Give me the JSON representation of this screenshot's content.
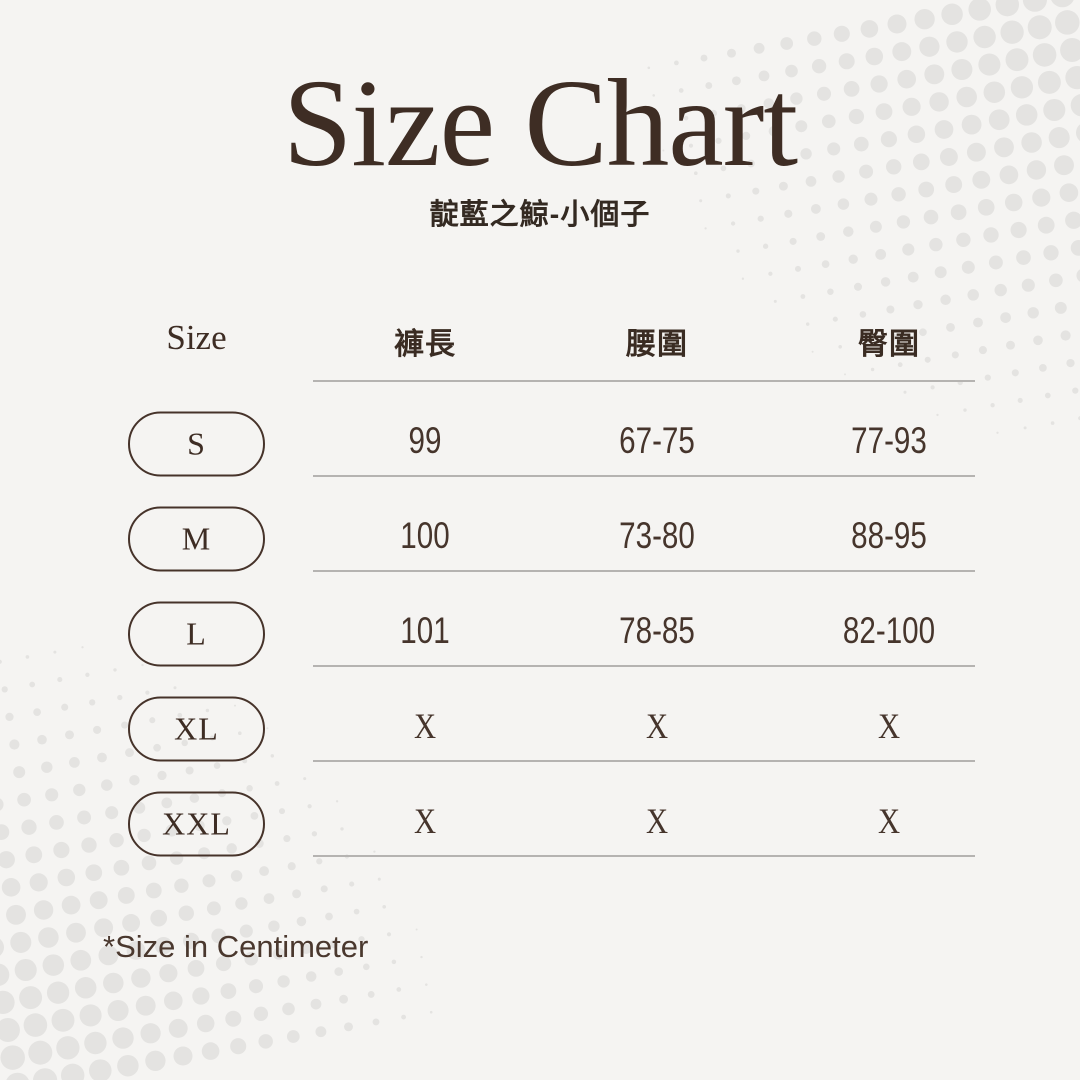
{
  "page": {
    "title": "Size Chart",
    "subtitle": "靛藍之鯨-小個子",
    "footnote": "*Size in Centimeter"
  },
  "table": {
    "size_column_header": "Size",
    "column_headers": [
      "褲長",
      "腰圍",
      "臀圍"
    ],
    "rows": [
      {
        "size": "S",
        "values": [
          "99",
          "67-75",
          "77-93"
        ]
      },
      {
        "size": "M",
        "values": [
          "100",
          "73-80",
          "88-95"
        ]
      },
      {
        "size": "L",
        "values": [
          "101",
          "78-85",
          "82-100"
        ]
      },
      {
        "size": "XL",
        "values": [
          "X",
          "X",
          "X"
        ]
      },
      {
        "size": "XXL",
        "values": [
          "X",
          "X",
          "X"
        ]
      }
    ]
  },
  "chart_data": {
    "type": "table",
    "title": "Size Chart",
    "subtitle": "靛藍之鯨-小個子",
    "columns": [
      "Size",
      "褲長",
      "腰圍",
      "臀圍"
    ],
    "rows": [
      [
        "S",
        "99",
        "67-75",
        "77-93"
      ],
      [
        "M",
        "100",
        "73-80",
        "88-95"
      ],
      [
        "L",
        "101",
        "78-85",
        "82-100"
      ],
      [
        "XL",
        "X",
        "X",
        "X"
      ],
      [
        "XXL",
        "X",
        "X",
        "X"
      ]
    ],
    "note": "*Size in Centimeter",
    "units": "cm"
  },
  "colors": {
    "background": "#f5f4f2",
    "title_brown": "#3e2d24",
    "value_brown": "#46352c",
    "pill_border_brown": "#46332a",
    "divider_gray": "#b5b3b1",
    "halftone_dot_gray": "#e4e3e1"
  },
  "decor": {
    "halftone_corners": [
      "top-right",
      "bottom-left"
    ]
  }
}
